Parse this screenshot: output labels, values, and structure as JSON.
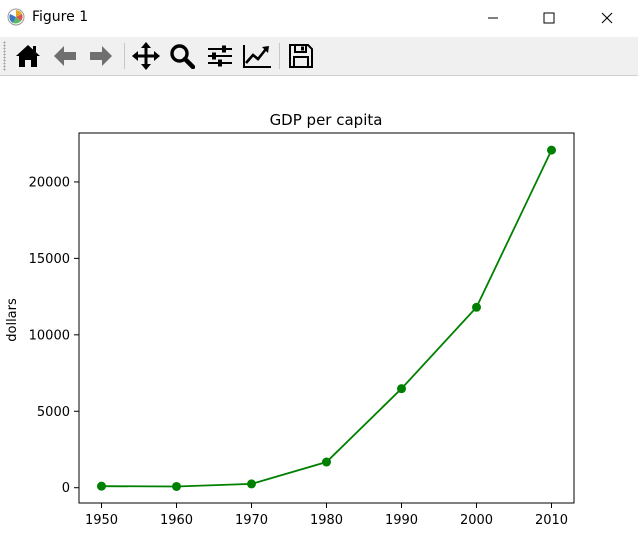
{
  "window": {
    "title": "Figure 1",
    "icons": {
      "app": "matplotlib-icon",
      "minimize": "minimize-icon",
      "maximize": "maximize-icon",
      "close": "close-icon"
    }
  },
  "toolbar": {
    "tools": [
      {
        "name": "home",
        "icon": "home-icon"
      },
      {
        "name": "back",
        "icon": "arrow-left-icon"
      },
      {
        "name": "forward",
        "icon": "arrow-right-icon"
      },
      {
        "name": "pan",
        "icon": "move-icon"
      },
      {
        "name": "zoom",
        "icon": "magnifier-icon"
      },
      {
        "name": "configure-subplots",
        "icon": "sliders-icon"
      },
      {
        "name": "edit-axes",
        "icon": "line-chart-icon"
      },
      {
        "name": "save",
        "icon": "floppy-disk-icon"
      }
    ]
  },
  "chart_data": {
    "type": "line",
    "title": "GDP per capita",
    "xlabel": "",
    "ylabel": "dollars",
    "x": [
      1950,
      1960,
      1970,
      1980,
      1990,
      2000,
      2010
    ],
    "series": [
      {
        "values": [
          100,
          80,
          250,
          1680,
          6480,
          11800,
          22080
        ],
        "color": "#008000",
        "marker": "circle"
      }
    ],
    "xticks": [
      1950,
      1960,
      1970,
      1980,
      1990,
      2000,
      2010
    ],
    "xtick_labels": [
      "1950",
      "1960",
      "1970",
      "1980",
      "1990",
      "2000",
      "2010"
    ],
    "yticks": [
      0,
      5000,
      10000,
      15000,
      20000
    ],
    "ytick_labels": [
      "0",
      "5000",
      "10000",
      "15000",
      "20000"
    ],
    "xlim": [
      1947,
      2013
    ],
    "ylim": [
      -1000,
      23200
    ],
    "grid": false,
    "legend": "none"
  }
}
